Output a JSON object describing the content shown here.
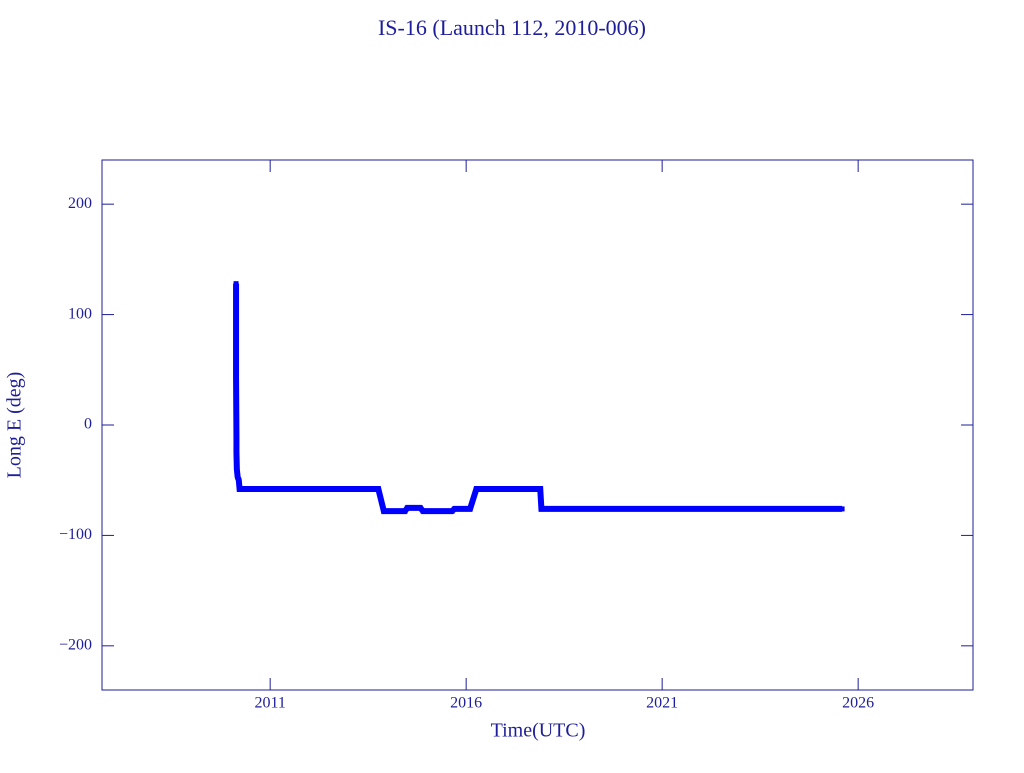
{
  "chart_data": {
    "type": "line",
    "title": "IS-16 (Launch 112, 2010-006)",
    "xlabel": "Time(UTC)",
    "ylabel": "Long E (deg)",
    "x": [
      2010.13,
      2010.13,
      2010.13,
      2010.14,
      2010.14,
      2010.15,
      2010.17,
      2010.2,
      2010.22,
      2013.76,
      2013.9,
      2014.44,
      2014.5,
      2014.83,
      2014.9,
      2015.64,
      2015.7,
      2016.1,
      2016.26,
      2017.89,
      2017.92,
      2025.59
    ],
    "series": [
      {
        "name": "IS-16",
        "color": "#0000ff",
        "values": [
          128,
          96,
          43,
          -11,
          -25,
          -40,
          -47,
          -50,
          -58,
          -58,
          -78,
          -78,
          -75,
          -75,
          -78,
          -78,
          -76,
          -76,
          -58,
          -58,
          -76,
          -76
        ]
      }
    ],
    "xlim": [
      2006.71,
      2028.93
    ],
    "xticks": [
      2011,
      2016,
      2021,
      2026
    ],
    "ylim": [
      -240,
      240
    ],
    "yticks": [
      {
        "value": -200,
        "label": "−200"
      },
      {
        "value": -100,
        "label": "−100"
      },
      0,
      100,
      200
    ],
    "axis_color": "#1e1e9a"
  }
}
